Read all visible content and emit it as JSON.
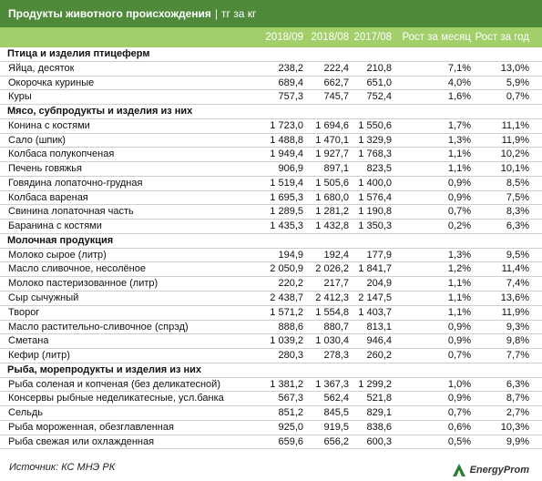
{
  "title": {
    "main": "Продукты животного происхождения",
    "separator": "|",
    "unit": "тг за кг"
  },
  "columns": [
    "2018/09",
    "2018/08",
    "2017/08",
    "Рост за месяц",
    "Рост за год"
  ],
  "sections": [
    {
      "name": "Птица и изделия птицеферм",
      "rows": [
        {
          "name": "Яйца, десяток",
          "v": [
            "238,2",
            "222,4",
            "210,8",
            "7,1%",
            "13,0%"
          ]
        },
        {
          "name": "Окорочка куриные",
          "v": [
            "689,4",
            "662,7",
            "651,0",
            "4,0%",
            "5,9%"
          ]
        },
        {
          "name": "Куры",
          "v": [
            "757,3",
            "745,7",
            "752,4",
            "1,6%",
            "0,7%"
          ]
        }
      ]
    },
    {
      "name": "Мясо, субпродукты и изделия из них",
      "rows": [
        {
          "name": "Конина с костями",
          "v": [
            "1 723,0",
            "1 694,6",
            "1 550,6",
            "1,7%",
            "11,1%"
          ]
        },
        {
          "name": "Сало (шпик)",
          "v": [
            "1 488,8",
            "1 470,1",
            "1 329,9",
            "1,3%",
            "11,9%"
          ]
        },
        {
          "name": "Колбаса полукопченая",
          "v": [
            "1 949,4",
            "1 927,7",
            "1 768,3",
            "1,1%",
            "10,2%"
          ]
        },
        {
          "name": "Печень говяжья",
          "v": [
            "906,9",
            "897,1",
            "823,5",
            "1,1%",
            "10,1%"
          ]
        },
        {
          "name": "Говядина лопаточно-грудная",
          "v": [
            "1 519,4",
            "1 505,6",
            "1 400,0",
            "0,9%",
            "8,5%"
          ]
        },
        {
          "name": "Колбаса вареная",
          "v": [
            "1 695,3",
            "1 680,0",
            "1 576,4",
            "0,9%",
            "7,5%"
          ]
        },
        {
          "name": "Свинина лопаточная часть",
          "v": [
            "1 289,5",
            "1 281,2",
            "1 190,8",
            "0,7%",
            "8,3%"
          ]
        },
        {
          "name": "Баранина с костями",
          "v": [
            "1 435,3",
            "1 432,8",
            "1 350,3",
            "0,2%",
            "6,3%"
          ]
        }
      ]
    },
    {
      "name": "Молочная продукция",
      "rows": [
        {
          "name": "Молоко сырое (литр)",
          "v": [
            "194,9",
            "192,4",
            "177,9",
            "1,3%",
            "9,5%"
          ]
        },
        {
          "name": "Масло сливочное, несолёное",
          "v": [
            "2 050,9",
            "2 026,2",
            "1 841,7",
            "1,2%",
            "11,4%"
          ]
        },
        {
          "name": "Молоко пастеризованное (литр)",
          "v": [
            "220,2",
            "217,7",
            "204,9",
            "1,1%",
            "7,4%"
          ]
        },
        {
          "name": "Сыр сычужный",
          "v": [
            "2 438,7",
            "2 412,3",
            "2 147,5",
            "1,1%",
            "13,6%"
          ]
        },
        {
          "name": "Творог",
          "v": [
            "1 571,2",
            "1 554,8",
            "1 403,7",
            "1,1%",
            "11,9%"
          ]
        },
        {
          "name": "Масло растительно-сливочное (спрэд)",
          "v": [
            "888,6",
            "880,7",
            "813,1",
            "0,9%",
            "9,3%"
          ]
        },
        {
          "name": "Сметана",
          "v": [
            "1 039,2",
            "1 030,4",
            "946,4",
            "0,9%",
            "9,8%"
          ]
        },
        {
          "name": "Кефир (литр)",
          "v": [
            "280,3",
            "278,3",
            "260,2",
            "0,7%",
            "7,7%"
          ]
        }
      ]
    },
    {
      "name": "Рыба, морепродукты и изделия из них",
      "rows": [
        {
          "name": "Рыба соленая и копченая (без деликатесной)",
          "v": [
            "1 381,2",
            "1 367,3",
            "1 299,2",
            "1,0%",
            "6,3%"
          ]
        },
        {
          "name": "Консервы рыбные неделикатесные, усл.банка",
          "v": [
            "567,3",
            "562,4",
            "521,8",
            "0,9%",
            "8,7%"
          ]
        },
        {
          "name": "Сельдь",
          "v": [
            "851,2",
            "845,5",
            "829,1",
            "0,7%",
            "2,7%"
          ]
        },
        {
          "name": "Рыба мороженная, обезглавленная",
          "v": [
            "925,0",
            "919,5",
            "838,6",
            "0,6%",
            "10,3%"
          ]
        },
        {
          "name": "Рыба свежая или охлажденная",
          "v": [
            "659,6",
            "656,2",
            "600,3",
            "0,5%",
            "9,9%"
          ]
        }
      ]
    }
  ],
  "footer": {
    "source": "Источник: КС МНЭ РК",
    "logo_text": "EnergyProm"
  },
  "colors": {
    "title_bg": "#4e8a3a",
    "header_bg": "#a3cf6b"
  }
}
